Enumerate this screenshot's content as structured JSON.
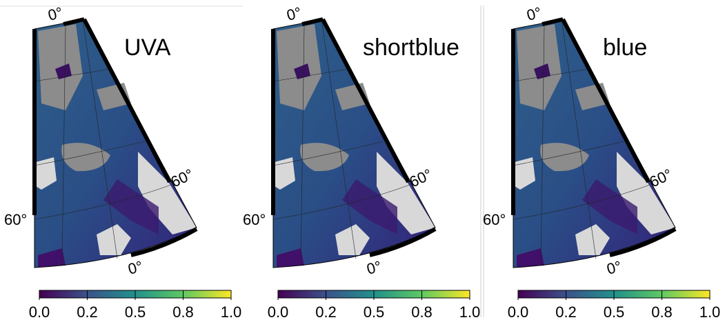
{
  "panels": [
    {
      "title": "UVA",
      "top_lon_label": "0°",
      "right_lat_label": "60°",
      "left_lat_label": "60°",
      "bottom_lon_label": "0°",
      "colorbar": {
        "range": [
          0,
          1
        ],
        "ticks": [
          {
            "value": 0,
            "label": "0.0"
          },
          {
            "value": 0.25,
            "label": "0.2"
          },
          {
            "value": 0.5,
            "label": "0.5"
          },
          {
            "value": 0.75,
            "label": "0.8"
          },
          {
            "value": 1,
            "label": "1.0"
          }
        ]
      }
    },
    {
      "title": "shortblue",
      "top_lon_label": "0°",
      "right_lat_label": "60°",
      "left_lat_label": "60°",
      "bottom_lon_label": "0°",
      "colorbar": {
        "range": [
          0,
          1
        ],
        "ticks": [
          {
            "value": 0,
            "label": "0.0"
          },
          {
            "value": 0.25,
            "label": "0.2"
          },
          {
            "value": 0.5,
            "label": "0.5"
          },
          {
            "value": 0.75,
            "label": "0.8"
          },
          {
            "value": 1,
            "label": "1.0"
          }
        ]
      }
    },
    {
      "title": "blue",
      "top_lon_label": "0°",
      "right_lat_label": "60°",
      "left_lat_label": "60°",
      "bottom_lon_label": "0°",
      "colorbar": {
        "range": [
          0,
          1
        ],
        "ticks": [
          {
            "value": 0,
            "label": "0.0"
          },
          {
            "value": 0.25,
            "label": "0.2"
          },
          {
            "value": 0.5,
            "label": "0.5"
          },
          {
            "value": 0.75,
            "label": "0.8"
          },
          {
            "value": 1,
            "label": "1.0"
          }
        ]
      }
    }
  ]
}
